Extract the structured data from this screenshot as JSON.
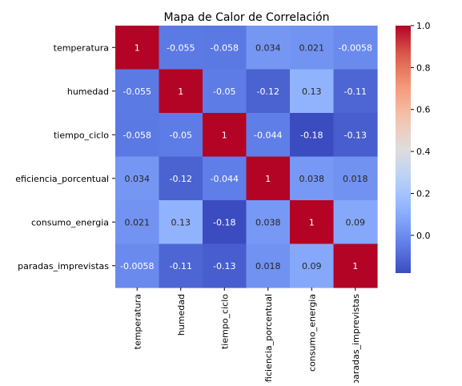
{
  "chart_data": {
    "type": "heatmap",
    "title": "Mapa de Calor de Correlación",
    "variables": [
      "temperatura",
      "humedad",
      "tiempo_ciclo",
      "eficiencia_porcentual",
      "consumo_energia",
      "paradas_imprevistas"
    ],
    "matrix": [
      [
        1,
        -0.055,
        -0.058,
        0.034,
        0.021,
        -0.0058
      ],
      [
        -0.055,
        1,
        -0.05,
        -0.12,
        0.13,
        -0.11
      ],
      [
        -0.058,
        -0.05,
        1,
        -0.044,
        -0.18,
        -0.13
      ],
      [
        0.034,
        -0.12,
        -0.044,
        1,
        0.038,
        0.018
      ],
      [
        0.021,
        0.13,
        -0.18,
        0.038,
        1,
        0.09
      ],
      [
        -0.0058,
        -0.11,
        -0.13,
        0.018,
        0.09,
        1
      ]
    ],
    "cell_labels": [
      [
        "1",
        "-0.055",
        "-0.058",
        "0.034",
        "0.021",
        "-0.0058"
      ],
      [
        "-0.055",
        "1",
        "-0.05",
        "-0.12",
        "0.13",
        "-0.11"
      ],
      [
        "-0.058",
        "-0.05",
        "1",
        "-0.044",
        "-0.18",
        "-0.13"
      ],
      [
        "0.034",
        "-0.12",
        "-0.044",
        "1",
        "0.038",
        "0.018"
      ],
      [
        "0.021",
        "0.13",
        "-0.18",
        "0.038",
        "1",
        "0.09"
      ],
      [
        "-0.0058",
        "-0.11",
        "-0.13",
        "0.018",
        "0.09",
        "1"
      ]
    ],
    "colormap": "coolwarm",
    "color_range": [
      -0.18,
      1.0
    ],
    "colorbar_ticks": [
      0.0,
      0.2,
      0.4,
      0.6,
      0.8,
      1.0
    ],
    "colorbar_tick_labels": [
      "0.0",
      "0.2",
      "0.4",
      "0.6",
      "0.8",
      "1.0"
    ],
    "colorbar_position": "right",
    "grid": false
  }
}
